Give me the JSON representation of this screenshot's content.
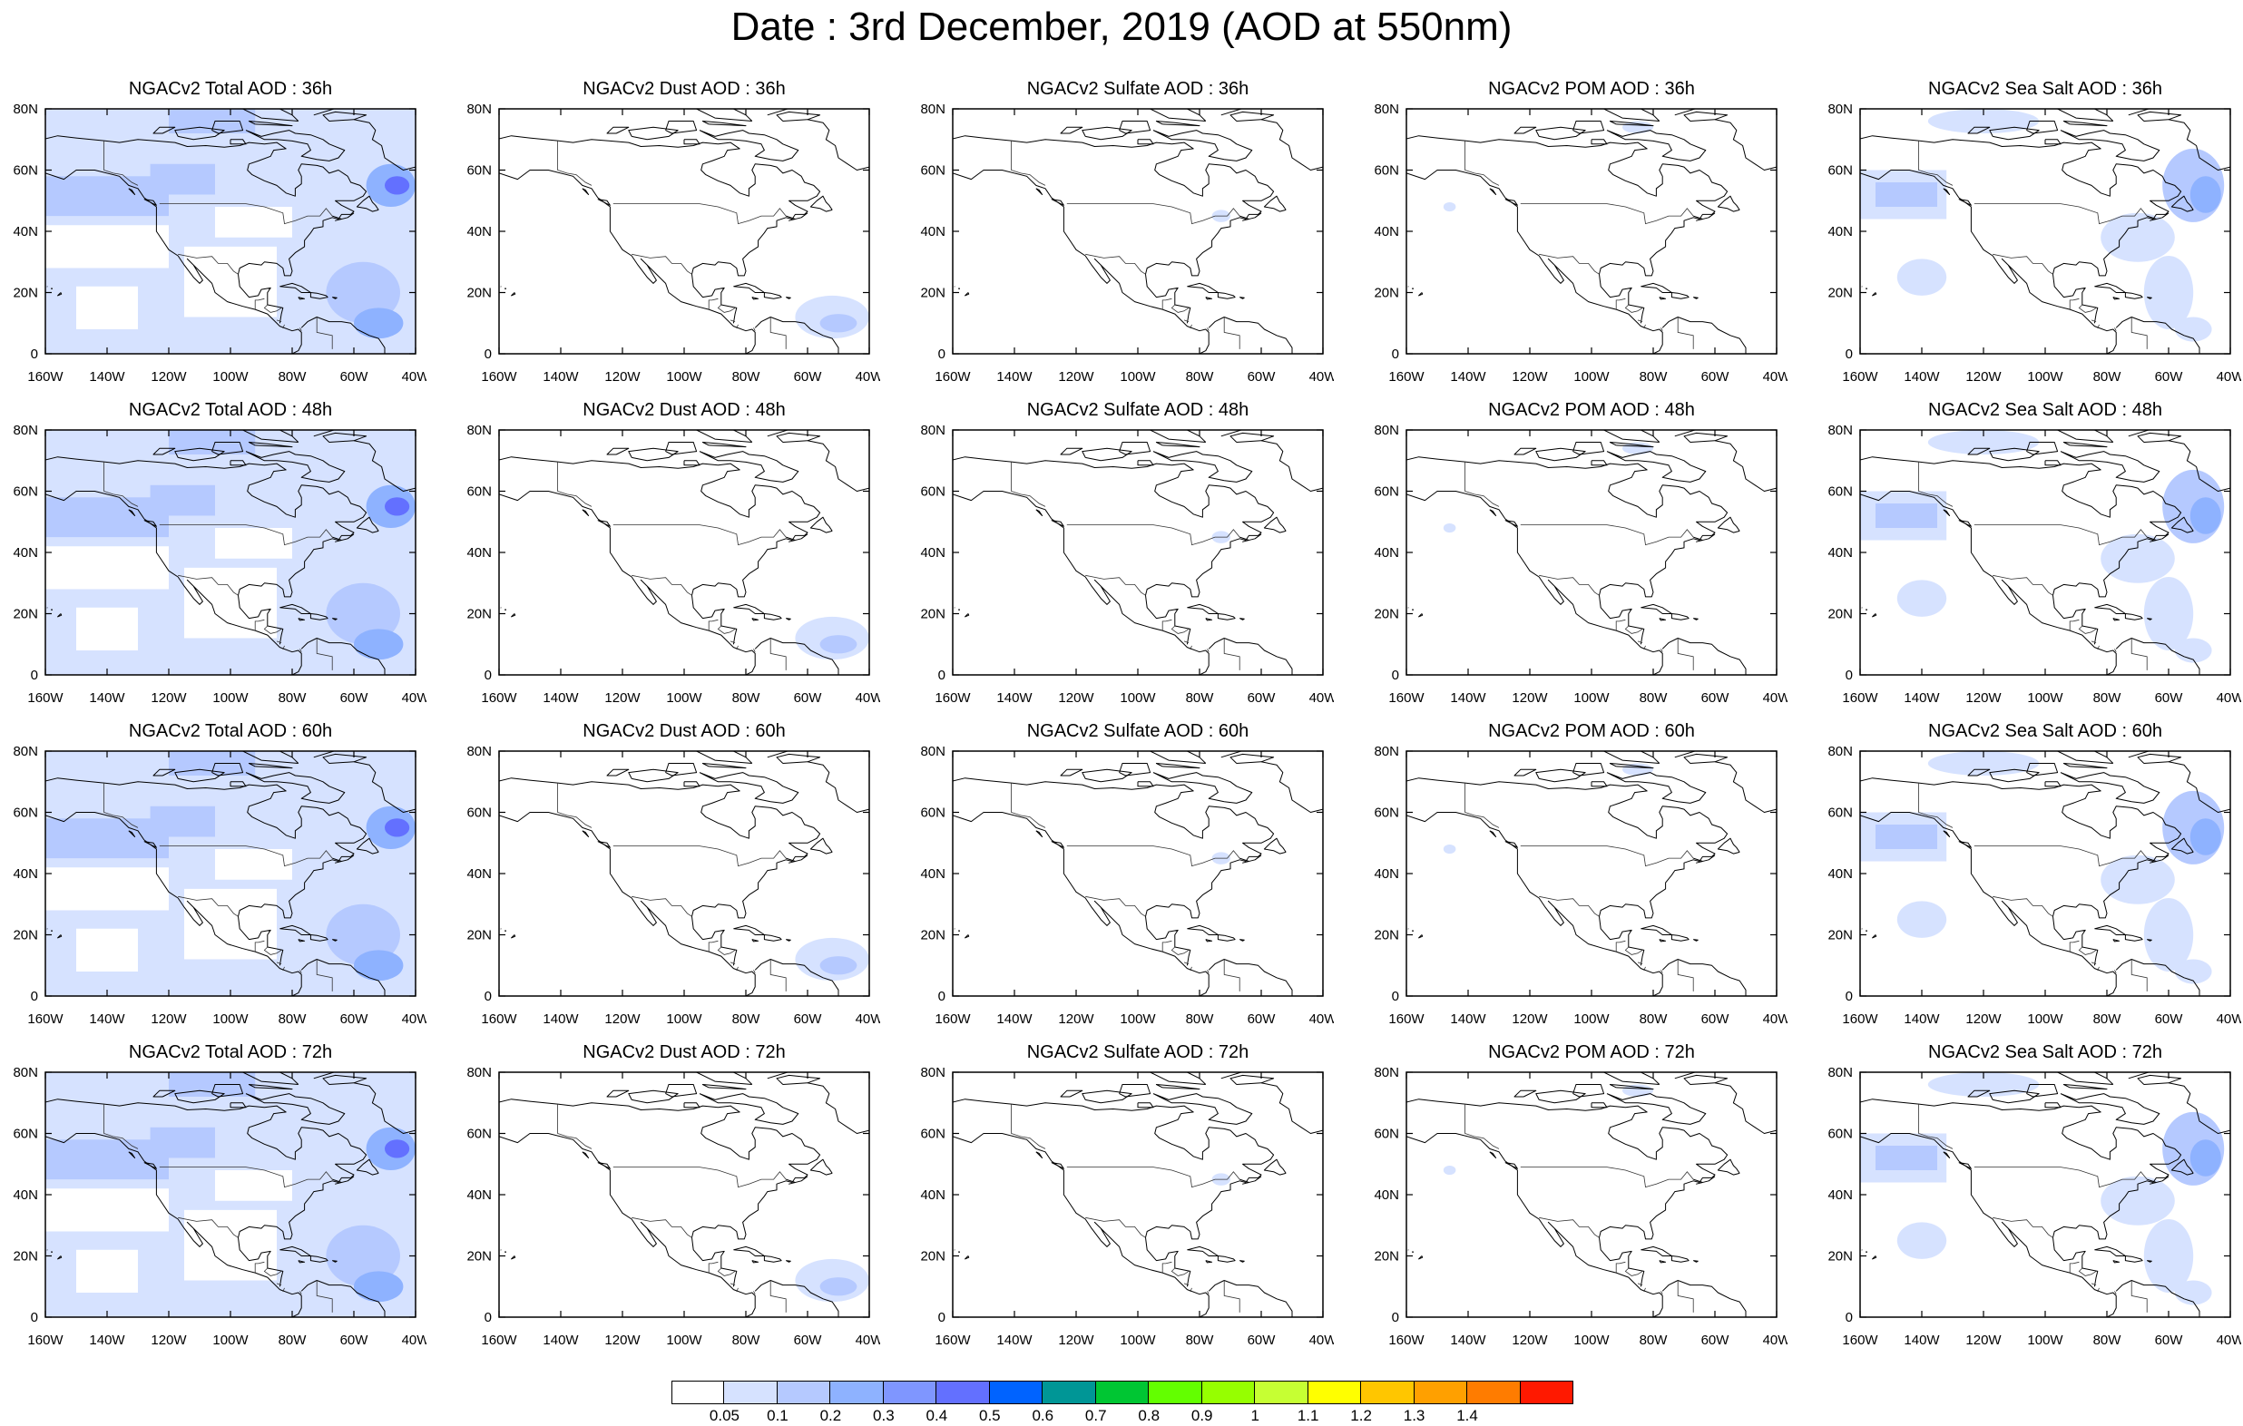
{
  "title": "Date : 3rd December, 2019 (AOD at 550nm)",
  "panels": [
    {
      "title": "NGACv2 Total AOD : 36h",
      "variable": "total",
      "lead": "36h"
    },
    {
      "title": "NGACv2 Dust AOD : 36h",
      "variable": "dust",
      "lead": "36h"
    },
    {
      "title": "NGACv2 Sulfate AOD : 36h",
      "variable": "sulfate",
      "lead": "36h"
    },
    {
      "title": "NGACv2 POM AOD : 36h",
      "variable": "pom",
      "lead": "36h"
    },
    {
      "title": "NGACv2 Sea Salt AOD : 36h",
      "variable": "seasalt",
      "lead": "36h"
    },
    {
      "title": "NGACv2 Total AOD : 48h",
      "variable": "total",
      "lead": "48h"
    },
    {
      "title": "NGACv2 Dust AOD : 48h",
      "variable": "dust",
      "lead": "48h"
    },
    {
      "title": "NGACv2 Sulfate AOD : 48h",
      "variable": "sulfate",
      "lead": "48h"
    },
    {
      "title": "NGACv2 POM AOD : 48h",
      "variable": "pom",
      "lead": "48h"
    },
    {
      "title": "NGACv2 Sea Salt AOD : 48h",
      "variable": "seasalt",
      "lead": "48h"
    },
    {
      "title": "NGACv2 Total AOD : 60h",
      "variable": "total",
      "lead": "60h"
    },
    {
      "title": "NGACv2 Dust AOD : 60h",
      "variable": "dust",
      "lead": "60h"
    },
    {
      "title": "NGACv2 Sulfate AOD : 60h",
      "variable": "sulfate",
      "lead": "60h"
    },
    {
      "title": "NGACv2 POM AOD : 60h",
      "variable": "pom",
      "lead": "60h"
    },
    {
      "title": "NGACv2 Sea Salt AOD : 60h",
      "variable": "seasalt",
      "lead": "60h"
    },
    {
      "title": "NGACv2 Total AOD : 72h",
      "variable": "total",
      "lead": "72h"
    },
    {
      "title": "NGACv2 Dust AOD : 72h",
      "variable": "dust",
      "lead": "72h"
    },
    {
      "title": "NGACv2 Sulfate AOD : 72h",
      "variable": "sulfate",
      "lead": "72h"
    },
    {
      "title": "NGACv2 POM AOD : 72h",
      "variable": "pom",
      "lead": "72h"
    },
    {
      "title": "NGACv2 Sea Salt  AOD : 72h",
      "variable": "seasalt",
      "lead": "72h"
    }
  ],
  "map": {
    "lon_range": [
      -160,
      -40
    ],
    "lat_range": [
      0,
      80
    ],
    "lon_ticks": [
      "160W",
      "140W",
      "120W",
      "100W",
      "80W",
      "60W",
      "40W"
    ],
    "lat_ticks": [
      "0",
      "20N",
      "40N",
      "60N",
      "80N"
    ],
    "coastline_color": "#000000"
  },
  "colorbar": {
    "colors": [
      "#ffffff",
      "#d6e2ff",
      "#b5c9ff",
      "#8eb2ff",
      "#7f96ff",
      "#6370ff",
      "#0063ff",
      "#009696",
      "#00c633",
      "#63ff00",
      "#96ff00",
      "#c6ff33",
      "#ffff00",
      "#ffc600",
      "#ffa000",
      "#ff7c00",
      "#ff1900"
    ],
    "labels": [
      "0.05",
      "0.1",
      "0.2",
      "0.3",
      "0.4",
      "0.5",
      "0.6",
      "0.7",
      "0.8",
      "0.9",
      "1",
      "1.1",
      "1.2",
      "1.3",
      "1.4"
    ]
  }
}
